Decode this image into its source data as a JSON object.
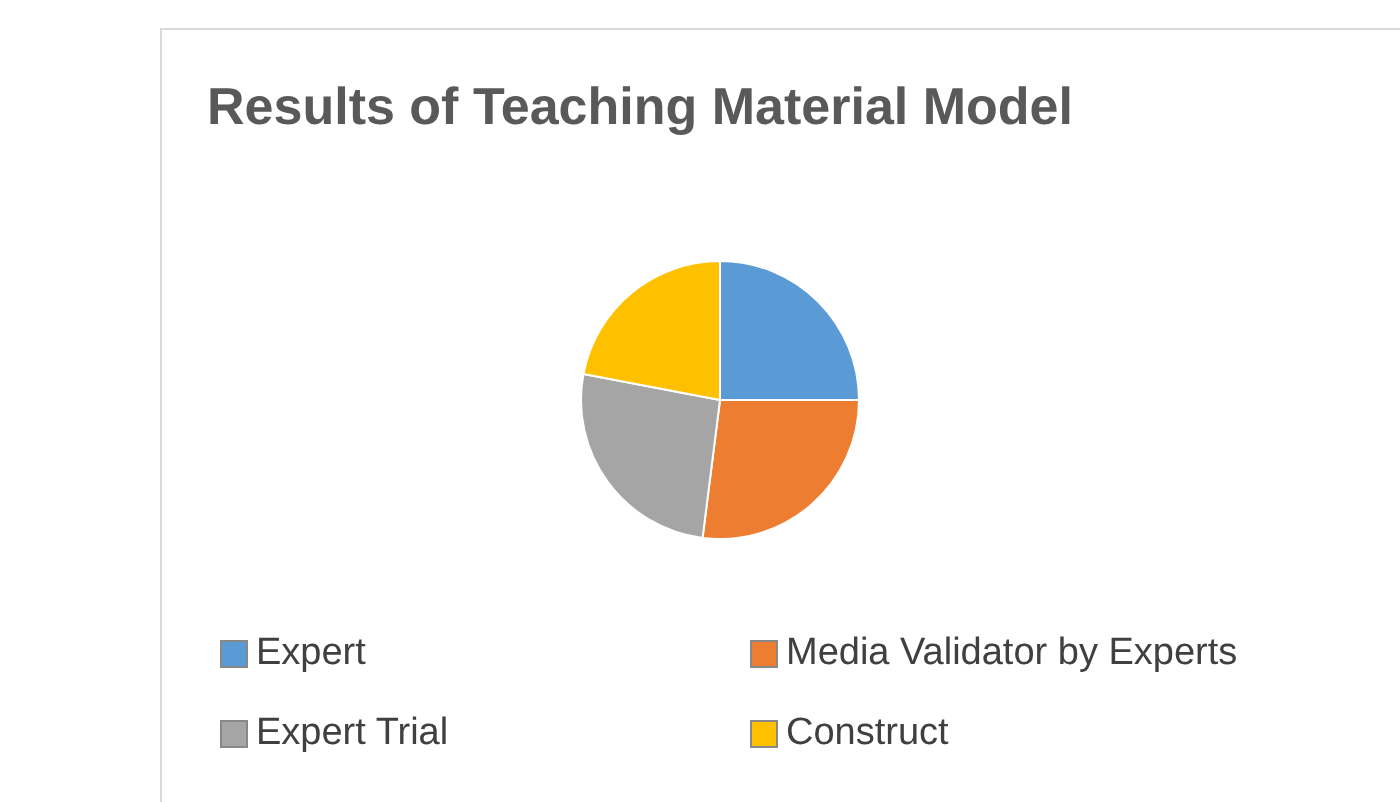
{
  "chart_data": {
    "type": "pie",
    "title": "Results of Teaching Material Model",
    "categories": [
      "Expert",
      "Media Validator by Experts",
      "Expert Trial",
      "Construct"
    ],
    "values": [
      25,
      27,
      26,
      22
    ],
    "colors": [
      "#5b9bd5",
      "#ed7d31",
      "#a5a5a5",
      "#ffc000"
    ],
    "legend": "bottom"
  }
}
